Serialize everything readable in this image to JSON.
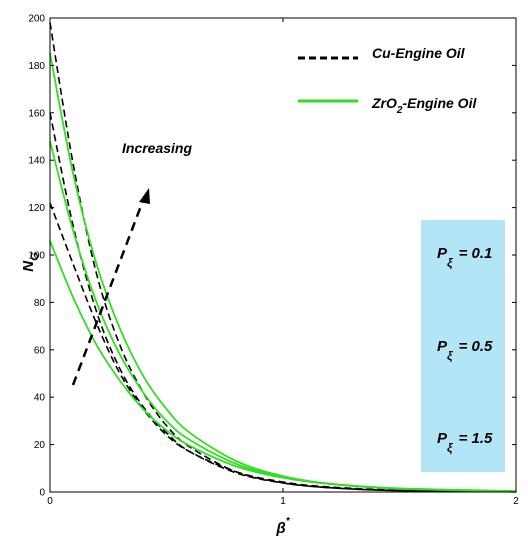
{
  "chart_data": {
    "type": "line",
    "xlabel": "β*",
    "ylabel": "N_G",
    "xlim": [
      0,
      2
    ],
    "ylim": [
      0,
      200
    ],
    "xticks": [
      0,
      1,
      2
    ],
    "yticks": [
      0,
      20,
      40,
      60,
      80,
      100,
      120,
      140,
      160,
      180,
      200
    ],
    "grid": false,
    "legend_position": "top-right",
    "legend": [
      {
        "label": "Cu-Engine Oil",
        "style": "dashed",
        "color": "#000000"
      },
      {
        "label": "ZrO2-Engine Oil",
        "style": "solid",
        "color": "#33dd22"
      }
    ],
    "annotation": "Increasing",
    "parameter_box": {
      "background": "#b3e5f7",
      "labels": [
        "P_ξ = 0.1",
        "P_ξ = 0.5",
        "P_ξ = 1.5"
      ]
    },
    "series": [
      {
        "name": "Cu-Engine Oil",
        "group": "Cu",
        "P_xi": "0.1",
        "x": [
          0,
          0.1,
          0.2,
          0.3,
          0.4,
          0.5,
          0.6,
          0.8,
          1.0,
          1.2,
          1.5,
          2.0
        ],
        "y": [
          122,
          96,
          71,
          50,
          35,
          24,
          17,
          8.5,
          4.2,
          2.1,
          0.8,
          0.1
        ]
      },
      {
        "name": "Cu-Engine Oil",
        "group": "Cu",
        "P_xi": "0.5",
        "x": [
          0,
          0.1,
          0.2,
          0.3,
          0.4,
          0.5,
          0.6,
          0.8,
          1.0,
          1.2,
          1.5,
          2.0
        ],
        "y": [
          160,
          112,
          76,
          52,
          36,
          25,
          17,
          8.0,
          3.8,
          1.8,
          0.6,
          0.1
        ]
      },
      {
        "name": "Cu-Engine Oil",
        "group": "Cu",
        "P_xi": "1.5",
        "x": [
          0,
          0.1,
          0.2,
          0.3,
          0.4,
          0.5,
          0.6,
          0.8,
          1.0,
          1.2,
          1.5,
          2.0
        ],
        "y": [
          198,
          138,
          92,
          62,
          42,
          28,
          19,
          8.5,
          3.9,
          1.8,
          0.6,
          0.1
        ]
      },
      {
        "name": "ZrO2-Engine Oil",
        "group": "ZrO2",
        "P_xi": "0.1",
        "x": [
          0,
          0.1,
          0.2,
          0.3,
          0.4,
          0.5,
          0.6,
          0.8,
          1.0,
          1.2,
          1.5,
          2.0
        ],
        "y": [
          106,
          82,
          62,
          47,
          35,
          26,
          19.5,
          10.8,
          6.0,
          3.4,
          1.5,
          0.4
        ]
      },
      {
        "name": "ZrO2-Engine Oil",
        "group": "ZrO2",
        "P_xi": "0.5",
        "x": [
          0,
          0.1,
          0.2,
          0.3,
          0.4,
          0.5,
          0.6,
          0.8,
          1.0,
          1.2,
          1.5,
          2.0
        ],
        "y": [
          148,
          110,
          80,
          58,
          42,
          30,
          22,
          11.8,
          6.3,
          3.4,
          1.4,
          0.3
        ]
      },
      {
        "name": "ZrO2-Engine Oil",
        "group": "ZrO2",
        "P_xi": "1.5",
        "x": [
          0,
          0.1,
          0.2,
          0.3,
          0.4,
          0.5,
          0.6,
          0.8,
          1.0,
          1.2,
          1.5,
          2.0
        ],
        "y": [
          185,
          134,
          96,
          69,
          49,
          35,
          25,
          13.0,
          6.7,
          3.5,
          1.4,
          0.3
        ]
      }
    ]
  }
}
